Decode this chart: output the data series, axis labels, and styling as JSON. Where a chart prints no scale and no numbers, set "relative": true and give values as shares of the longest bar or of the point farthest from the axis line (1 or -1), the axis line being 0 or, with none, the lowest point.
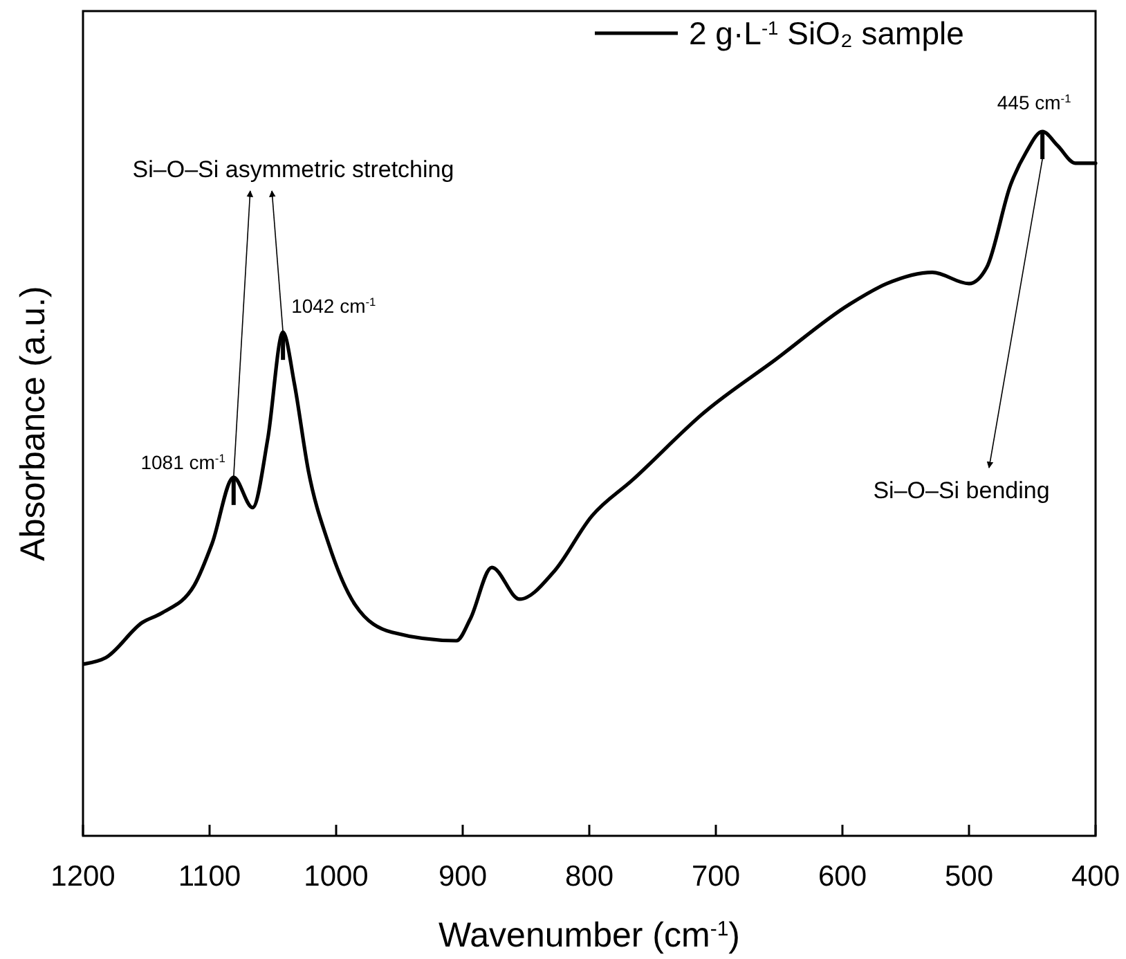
{
  "chart_data": {
    "type": "line",
    "relative": true,
    "xlabel": "Wavenumber (cm$^{-1}$)",
    "ylabel": "Absorbance (a.u.)",
    "xlim": [
      1200,
      400
    ],
    "xticks": [
      1200,
      1100,
      1000,
      900,
      800,
      700,
      600,
      500,
      400
    ],
    "legend": "top right",
    "grid": false,
    "marker": "none",
    "line_style": "solid",
    "series": [
      {
        "name": "2 g·L$^{-1}$ SiO₂ sample",
        "color": "#000000",
        "x": [
          1199,
          1182,
          1153,
          1138,
          1112,
          1098,
          1081,
          1066,
          1054,
          1042,
          1033,
          1022,
          1006,
          985,
          956,
          905,
          894,
          877,
          855,
          828,
          798,
          766,
          708,
          653,
          595,
          565,
          529,
          500,
          486,
          467,
          455,
          442,
          430,
          416,
          400
        ],
        "values": [
          0.244,
          0.253,
          0.303,
          0.316,
          0.356,
          0.415,
          0.509,
          0.466,
          0.564,
          0.715,
          0.642,
          0.519,
          0.415,
          0.328,
          0.289,
          0.277,
          0.308,
          0.381,
          0.336,
          0.375,
          0.454,
          0.505,
          0.603,
          0.676,
          0.754,
          0.784,
          0.8,
          0.784,
          0.807,
          0.925,
          0.97,
          1.0,
          0.98,
          0.955,
          0.955
        ]
      }
    ],
    "annotations": [
      "Si–O–Si asymmetric stretching",
      {
        "text": "1081 cm$^{-1}$",
        "x": 1081,
        "y": 0.509
      },
      {
        "text": "1042 cm$^{-1}$",
        "x": 1042,
        "y": 0.715
      },
      {
        "text": "445 cm$^{-1}$",
        "x": 442,
        "y": 1.0
      },
      "Si–O–Si bending"
    ]
  }
}
